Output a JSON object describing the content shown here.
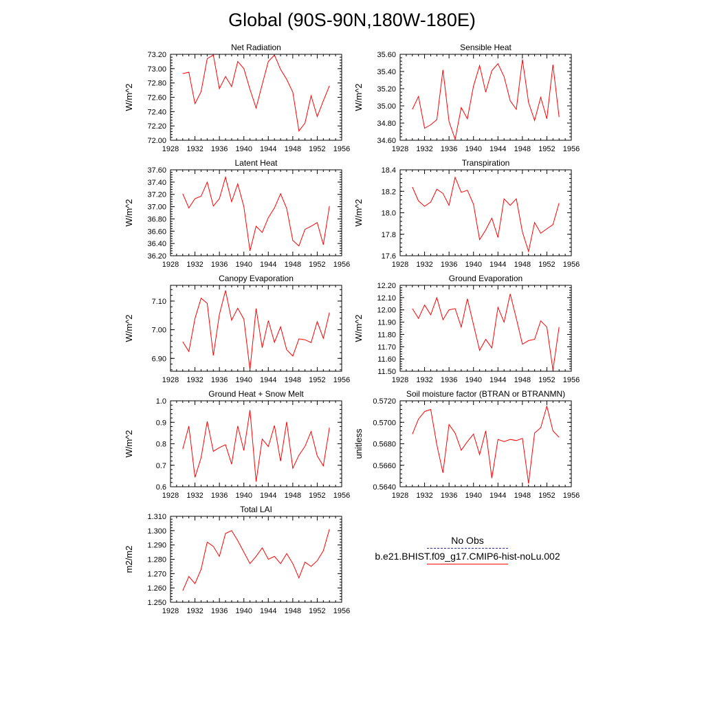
{
  "page": {
    "title": "Global (90S-90N,180W-180E)"
  },
  "legend": {
    "obs_label": "No Obs",
    "model_label": "b.e21.BHIST.f09_g17.CMIP6-hist-noLu.002",
    "obs_color": "#2a2aa0",
    "model_color": "#ff0000"
  },
  "chart_data": [
    {
      "type": "line",
      "title": "Net Radiation",
      "ylabel": "W/m^2",
      "xlabel": "",
      "xlim": [
        1928,
        1956
      ],
      "ylim": [
        72.0,
        73.2
      ],
      "xticks": [
        1928,
        1932,
        1936,
        1940,
        1944,
        1948,
        1952,
        1956
      ],
      "yticks": [
        "72.00",
        "72.20",
        "72.40",
        "72.60",
        "72.80",
        "73.00",
        "73.20"
      ],
      "x": [
        1930,
        1931,
        1932,
        1933,
        1934,
        1935,
        1936,
        1937,
        1938,
        1939,
        1940,
        1941,
        1942,
        1943,
        1944,
        1945,
        1946,
        1947,
        1948,
        1949,
        1950,
        1951,
        1952,
        1953,
        1954
      ],
      "values": [
        72.93,
        72.95,
        72.51,
        72.68,
        73.14,
        73.19,
        72.72,
        72.89,
        72.75,
        73.1,
        73.0,
        72.71,
        72.45,
        72.78,
        73.1,
        73.19,
        72.99,
        72.85,
        72.67,
        72.13,
        72.24,
        72.62,
        72.33,
        72.55,
        72.76
      ],
      "series_color": "#ff0000"
    },
    {
      "type": "line",
      "title": "Sensible Heat",
      "ylabel": "W/m^2",
      "xlabel": "",
      "xlim": [
        1928,
        1956
      ],
      "ylim": [
        34.6,
        35.6
      ],
      "xticks": [
        1928,
        1932,
        1936,
        1940,
        1944,
        1948,
        1952,
        1956
      ],
      "yticks": [
        "34.60",
        "34.80",
        "35.00",
        "35.20",
        "35.40",
        "35.60"
      ],
      "x": [
        1930,
        1931,
        1932,
        1933,
        1934,
        1935,
        1936,
        1937,
        1938,
        1939,
        1940,
        1941,
        1942,
        1943,
        1944,
        1945,
        1946,
        1947,
        1948,
        1949,
        1950,
        1951,
        1952,
        1953,
        1954
      ],
      "values": [
        34.96,
        35.11,
        34.74,
        34.78,
        34.84,
        35.42,
        34.82,
        34.61,
        34.98,
        34.85,
        35.23,
        35.47,
        35.16,
        35.41,
        35.49,
        35.34,
        35.06,
        34.96,
        35.54,
        35.04,
        34.83,
        35.1,
        34.85,
        35.48,
        34.87
      ],
      "series_color": "#ff0000"
    },
    {
      "type": "line",
      "title": "Latent Heat",
      "ylabel": "W/m^2",
      "xlabel": "",
      "xlim": [
        1928,
        1956
      ],
      "ylim": [
        36.2,
        37.6
      ],
      "xticks": [
        1928,
        1932,
        1936,
        1940,
        1944,
        1948,
        1952,
        1956
      ],
      "yticks": [
        "36.20",
        "36.40",
        "36.60",
        "36.80",
        "37.00",
        "37.20",
        "37.40",
        "37.60"
      ],
      "x": [
        1930,
        1931,
        1932,
        1933,
        1934,
        1935,
        1936,
        1937,
        1938,
        1939,
        1940,
        1941,
        1942,
        1943,
        1944,
        1945,
        1946,
        1947,
        1948,
        1949,
        1950,
        1951,
        1952,
        1953,
        1954
      ],
      "values": [
        37.21,
        36.98,
        37.13,
        37.17,
        37.4,
        37.01,
        37.13,
        37.48,
        37.08,
        37.37,
        37.0,
        36.28,
        36.68,
        36.58,
        36.82,
        36.98,
        37.21,
        36.97,
        36.45,
        36.36,
        36.63,
        36.68,
        36.74,
        36.38,
        37.01
      ],
      "series_color": "#ff0000"
    },
    {
      "type": "line",
      "title": "Transpiration",
      "ylabel": "W/m^2",
      "xlabel": "",
      "xlim": [
        1928,
        1956
      ],
      "ylim": [
        17.6,
        18.4
      ],
      "xticks": [
        1928,
        1932,
        1936,
        1940,
        1944,
        1948,
        1952,
        1956
      ],
      "yticks": [
        "17.6",
        "17.8",
        "18.0",
        "18.2",
        "18.4"
      ],
      "x": [
        1930,
        1931,
        1932,
        1933,
        1934,
        1935,
        1936,
        1937,
        1938,
        1939,
        1940,
        1941,
        1942,
        1943,
        1944,
        1945,
        1946,
        1947,
        1948,
        1949,
        1950,
        1951,
        1952,
        1953,
        1954
      ],
      "values": [
        18.24,
        18.11,
        18.06,
        18.1,
        18.22,
        18.18,
        18.07,
        18.33,
        18.19,
        18.21,
        18.08,
        17.75,
        17.84,
        17.95,
        17.77,
        18.13,
        18.07,
        18.13,
        17.82,
        17.64,
        17.91,
        17.81,
        17.85,
        17.89,
        18.09
      ],
      "series_color": "#ff0000"
    },
    {
      "type": "line",
      "title": "Canopy Evaporation",
      "ylabel": "W/m^2",
      "xlabel": "",
      "xlim": [
        1928,
        1956
      ],
      "ylim": [
        6.855,
        7.155
      ],
      "xticks": [
        1928,
        1932,
        1936,
        1940,
        1944,
        1948,
        1952,
        1956
      ],
      "yticks": [
        "6.90",
        "7.00",
        "7.10"
      ],
      "x": [
        1930,
        1931,
        1932,
        1933,
        1934,
        1935,
        1936,
        1937,
        1938,
        1939,
        1940,
        1941,
        1942,
        1943,
        1944,
        1945,
        1946,
        1947,
        1948,
        1949,
        1950,
        1951,
        1952,
        1953,
        1954
      ],
      "values": [
        6.958,
        6.924,
        7.039,
        7.11,
        7.092,
        6.91,
        7.053,
        7.137,
        7.033,
        7.075,
        7.037,
        6.86,
        7.074,
        6.937,
        7.032,
        6.956,
        7.01,
        6.93,
        6.908,
        6.968,
        6.965,
        6.955,
        7.028,
        6.97,
        7.06
      ],
      "series_color": "#ff0000"
    },
    {
      "type": "line",
      "title": "Ground Evaporation",
      "ylabel": "W/m^2",
      "xlabel": "",
      "xlim": [
        1928,
        1956
      ],
      "ylim": [
        11.5,
        12.2
      ],
      "xticks": [
        1928,
        1932,
        1936,
        1940,
        1944,
        1948,
        1952,
        1956
      ],
      "yticks": [
        "11.50",
        "11.60",
        "11.70",
        "11.80",
        "11.90",
        "12.00",
        "12.10",
        "12.20"
      ],
      "x": [
        1930,
        1931,
        1932,
        1933,
        1934,
        1935,
        1936,
        1937,
        1938,
        1939,
        1940,
        1941,
        1942,
        1943,
        1944,
        1945,
        1946,
        1947,
        1948,
        1949,
        1950,
        1951,
        1952,
        1953,
        1954
      ],
      "values": [
        12.01,
        11.93,
        12.04,
        11.96,
        12.1,
        11.92,
        12.0,
        12.01,
        11.86,
        12.09,
        11.88,
        11.67,
        11.76,
        11.69,
        12.02,
        11.9,
        12.13,
        11.93,
        11.72,
        11.75,
        11.76,
        11.91,
        11.86,
        11.51,
        11.86
      ],
      "series_color": "#ff0000"
    },
    {
      "type": "line",
      "title": "Ground Heat + Snow Melt",
      "ylabel": "W/m^2",
      "xlabel": "",
      "xlim": [
        1928,
        1956
      ],
      "ylim": [
        0.6,
        1.0
      ],
      "xticks": [
        1928,
        1932,
        1936,
        1940,
        1944,
        1948,
        1952,
        1956
      ],
      "yticks": [
        "0.6",
        "0.7",
        "0.8",
        "0.9",
        "1.0"
      ],
      "x": [
        1930,
        1931,
        1932,
        1933,
        1934,
        1935,
        1936,
        1937,
        1938,
        1939,
        1940,
        1941,
        1942,
        1943,
        1944,
        1945,
        1946,
        1947,
        1948,
        1949,
        1950,
        1951,
        1952,
        1953,
        1954
      ],
      "values": [
        0.775,
        0.882,
        0.644,
        0.735,
        0.904,
        0.765,
        0.782,
        0.796,
        0.705,
        0.883,
        0.769,
        0.957,
        0.624,
        0.822,
        0.787,
        0.885,
        0.719,
        0.902,
        0.686,
        0.747,
        0.788,
        0.857,
        0.744,
        0.697,
        0.875
      ],
      "series_color": "#ff0000"
    },
    {
      "type": "line",
      "title": "Soil moisture factor (BTRAN or BTRANMN)",
      "ylabel": "unitless",
      "xlabel": "",
      "xlim": [
        1928,
        1956
      ],
      "ylim": [
        0.564,
        0.572
      ],
      "xticks": [
        1928,
        1932,
        1936,
        1940,
        1944,
        1948,
        1952,
        1956
      ],
      "yticks": [
        "0.5640",
        "0.5660",
        "0.5680",
        "0.5700",
        "0.5720"
      ],
      "x": [
        1930,
        1931,
        1932,
        1933,
        1934,
        1935,
        1936,
        1937,
        1938,
        1939,
        1940,
        1941,
        1942,
        1943,
        1944,
        1945,
        1946,
        1947,
        1948,
        1949,
        1950,
        1951,
        1952,
        1953,
        1954
      ],
      "values": [
        0.5689,
        0.5703,
        0.571,
        0.5712,
        0.5679,
        0.5653,
        0.5698,
        0.569,
        0.5674,
        0.5682,
        0.5689,
        0.567,
        0.5692,
        0.5648,
        0.5684,
        0.5682,
        0.5684,
        0.5683,
        0.5685,
        0.5643,
        0.569,
        0.5695,
        0.5715,
        0.5692,
        0.5686
      ],
      "series_color": "#ff0000"
    },
    {
      "type": "line",
      "title": "Total LAI",
      "ylabel": "m2/m2",
      "xlabel": "",
      "xlim": [
        1928,
        1956
      ],
      "ylim": [
        1.25,
        1.31
      ],
      "xticks": [
        1928,
        1932,
        1936,
        1940,
        1944,
        1948,
        1952,
        1956
      ],
      "yticks": [
        "1.250",
        "1.260",
        "1.270",
        "1.280",
        "1.290",
        "1.300",
        "1.310"
      ],
      "x": [
        1930,
        1931,
        1932,
        1933,
        1934,
        1935,
        1936,
        1937,
        1938,
        1939,
        1940,
        1941,
        1942,
        1943,
        1944,
        1945,
        1946,
        1947,
        1948,
        1949,
        1950,
        1951,
        1952,
        1953,
        1954
      ],
      "values": [
        1.258,
        1.268,
        1.263,
        1.273,
        1.292,
        1.289,
        1.282,
        1.298,
        1.3,
        1.293,
        1.285,
        1.277,
        1.282,
        1.288,
        1.28,
        1.282,
        1.277,
        1.284,
        1.277,
        1.267,
        1.278,
        1.275,
        1.279,
        1.286,
        1.301
      ],
      "series_color": "#ff0000"
    }
  ]
}
